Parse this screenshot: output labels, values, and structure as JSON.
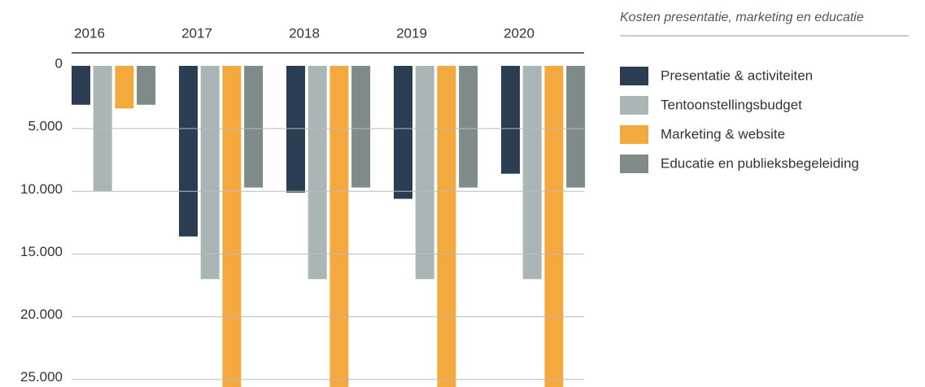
{
  "chart_data": {
    "type": "bar",
    "legend_title": "Kosten presentatie, marketing en educatie",
    "categories": [
      "2016",
      "2017",
      "2018",
      "2019",
      "2020"
    ],
    "series": [
      {
        "name": "Presentatie & activiteiten",
        "color": "#2b3d52",
        "values": [
          3100,
          13600,
          10100,
          10600,
          8600
        ]
      },
      {
        "name": "Tentoonstellingsbudget",
        "color": "#aab5b5",
        "values": [
          10000,
          17000,
          17000,
          17000,
          17000
        ]
      },
      {
        "name": "Marketing & website",
        "color": "#f4a93e",
        "values": [
          3400,
          26000,
          26000,
          26000,
          26000
        ]
      },
      {
        "name": "Educatie en publieksbegeleiding",
        "color": "#7f8b8a",
        "values": [
          3100,
          9700,
          9700,
          9700,
          9700
        ]
      }
    ],
    "ylim": [
      0,
      25600
    ],
    "y_inverted": true,
    "yticks": [
      0,
      {
        "value": 5000,
        "label": "5.000"
      },
      {
        "value": 10000,
        "label": "10.000"
      },
      {
        "value": 15000,
        "label": "15.000"
      },
      {
        "value": 20000,
        "label": "20.000"
      },
      {
        "value": 25000,
        "label": "25.000"
      }
    ],
    "grid": true,
    "legend": "right"
  }
}
